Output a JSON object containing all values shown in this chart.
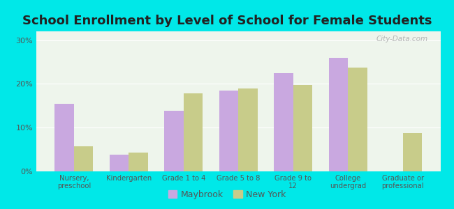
{
  "title": "School Enrollment by Level of School for Female Students",
  "categories": [
    "Nursery,\npreschool",
    "Kindergarten",
    "Grade 1 to 4",
    "Grade 5 to 8",
    "Grade 9 to\n12",
    "College\nundergrad",
    "Graduate or\nprofessional"
  ],
  "maybrook": [
    15.5,
    3.8,
    13.8,
    18.5,
    22.5,
    26.0,
    0
  ],
  "new_york": [
    5.8,
    4.3,
    17.8,
    19.0,
    19.8,
    23.8,
    8.8
  ],
  "maybrook_color": "#c9a8e0",
  "new_york_color": "#c8cc8a",
  "background_outer": "#00e8e8",
  "background_inner": "#eef5ec",
  "yticks": [
    0,
    10,
    20,
    30
  ],
  "ylim": [
    0,
    32
  ],
  "bar_width": 0.35,
  "title_fontsize": 13,
  "legend_label_maybrook": "Maybrook",
  "legend_label_new_york": "New York",
  "watermark": "City-Data.com"
}
